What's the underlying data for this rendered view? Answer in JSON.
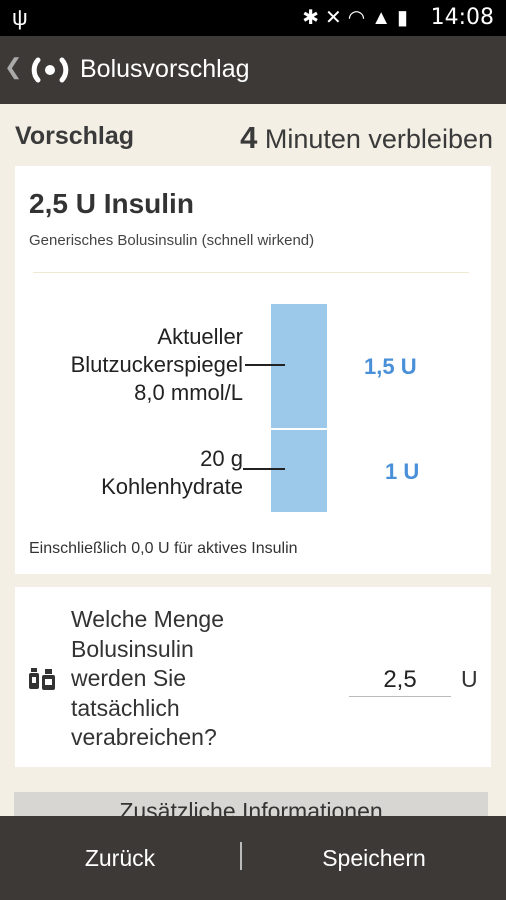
{
  "status_bar": {
    "time": "14:08",
    "left_icons": [
      "usb-icon"
    ],
    "right_icons": [
      "bluetooth-icon",
      "mute-icon",
      "wifi-icon",
      "signal-icon",
      "battery-icon"
    ]
  },
  "action_bar": {
    "title": "Bolusvorschlag",
    "back_icon": "chevron-left-icon",
    "logo_icon": "app-logo-icon"
  },
  "suggestion": {
    "section_label": "Vorschlag",
    "minutes": "4",
    "remaining_text": "Minuten verbleiben",
    "dose": "2,5 U Insulin",
    "insulin_type": "Generisches Bolusinsulin (schnell wirkend)",
    "breakdown": [
      {
        "label_line1": "Aktueller",
        "label_line2": "Blutzuckerspiegel",
        "label_line3": "8,0 mmol/L",
        "amount": "1,5 U",
        "units": 1.5
      },
      {
        "label_line1": "20 g",
        "label_line2": "Kohlenhydrate",
        "amount": "1 U",
        "units": 1
      }
    ],
    "active_insulin_note": "Einschließlich 0,0 U für aktives Insulin"
  },
  "administration": {
    "icon": "insulin-vial-icon",
    "question": "Welche Menge Bolusinsulin werden Sie tatsächlich verabreichen?",
    "value": "2,5",
    "unit": "U"
  },
  "more_info_button": "Zusätzliche Informationen",
  "bottom_bar": {
    "back_label": "Zurück",
    "save_label": "Speichern"
  },
  "colors": {
    "accent": "#4a90d9",
    "bar": "#9cc8ea",
    "header": "#3d3936",
    "background": "#f3efe4"
  }
}
